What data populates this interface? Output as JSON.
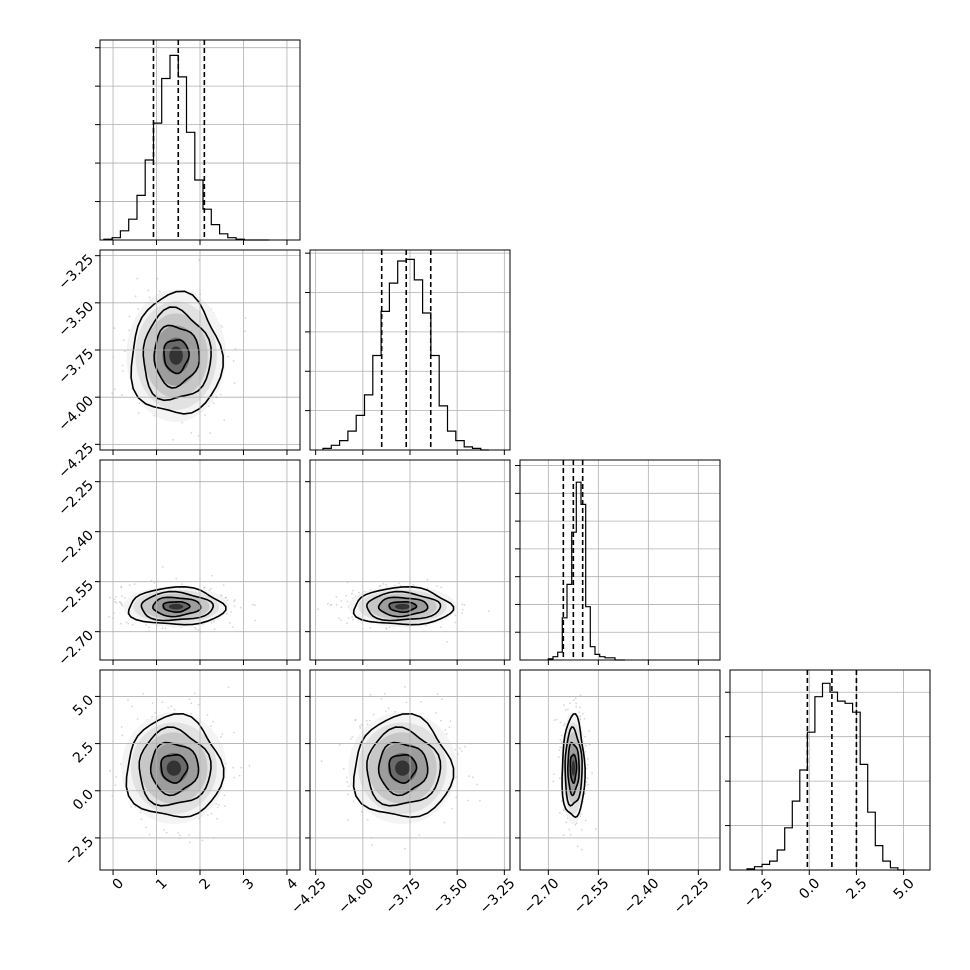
{
  "chart_data": {
    "type": "corner",
    "grid": true,
    "params": [
      {
        "range": [
          -0.3,
          4.3
        ],
        "ticks": [
          0,
          1,
          2,
          3,
          4
        ],
        "tick_labels": [
          "0",
          "1",
          "2",
          "3",
          "4"
        ],
        "quantiles": [
          0.93,
          1.5,
          2.1
        ]
      },
      {
        "range": [
          -4.28,
          -3.22
        ],
        "ticks": [
          -4.25,
          -4.0,
          -3.75,
          -3.5,
          -3.25
        ],
        "tick_labels": [
          "−4.25",
          "−4.00",
          "−3.75",
          "−3.50",
          "−3.25"
        ],
        "quantiles": [
          -3.9,
          -3.77,
          -3.64
        ]
      },
      {
        "range": [
          -2.785,
          -2.185
        ],
        "ticks": [
          -2.7,
          -2.55,
          -2.4,
          -2.25
        ],
        "tick_labels": [
          "−2.70",
          "−2.55",
          "−2.40",
          "−2.25"
        ],
        "y_ticks": [
          -2.7,
          -2.55,
          -2.4,
          -2.25
        ],
        "y_tick_labels": [
          "−2.70",
          "−2.55",
          "−2.40",
          "−2.25"
        ],
        "quantiles": [
          -2.655,
          -2.625,
          -2.597
        ]
      },
      {
        "range": [
          -4.2,
          6.4
        ],
        "ticks": [
          -2.5,
          0.0,
          2.5,
          5.0
        ],
        "tick_labels": [
          "−2.5",
          "0.0",
          "2.5",
          "5.0"
        ],
        "quantiles": [
          -0.1,
          1.2,
          2.5
        ]
      }
    ],
    "marginals": [
      {
        "bins": [
          -0.21,
          -0.02,
          0.17,
          0.36,
          0.55,
          0.74,
          0.93,
          1.12,
          1.31,
          1.5,
          1.69,
          1.88,
          2.07,
          2.26,
          2.45,
          2.64,
          2.83,
          3.02,
          3.21,
          3.4,
          3.59
        ],
        "counts": [
          1,
          3,
          12,
          27,
          58,
          104,
          152,
          210,
          240,
          212,
          140,
          78,
          40,
          20,
          8,
          3,
          1,
          0,
          0,
          0
        ],
        "ymax": 260,
        "y_ticks": [
          50,
          100,
          150,
          200,
          250
        ]
      },
      {
        "bins": [
          -4.211,
          -4.167,
          -4.123,
          -4.079,
          -4.035,
          -3.991,
          -3.947,
          -3.903,
          -3.859,
          -3.815,
          -3.771,
          -3.727,
          -3.683,
          -3.639,
          -3.595,
          -3.551,
          -3.507,
          -3.463,
          -3.419,
          -3.375,
          -3.331
        ],
        "counts": [
          1,
          3,
          6,
          12,
          22,
          35,
          60,
          88,
          106,
          120,
          121,
          108,
          87,
          60,
          28,
          12,
          6,
          2,
          1,
          0
        ],
        "ymax": 127,
        "y_ticks": [
          25,
          50,
          75,
          100,
          125
        ]
      },
      {
        "bins": [
          -2.7,
          -2.686,
          -2.672,
          -2.658,
          -2.644,
          -2.63,
          -2.616,
          -2.602,
          -2.588,
          -2.574,
          -2.56,
          -2.546,
          -2.53,
          -2.5,
          -2.47
        ],
        "counts": [
          1,
          3,
          7,
          38,
          68,
          115,
          160,
          140,
          48,
          12,
          5,
          3,
          2,
          0
        ],
        "ymax": 180,
        "y_ticks": [
          25,
          50,
          75,
          100,
          125,
          150,
          175
        ]
      },
      {
        "bins": [
          -3.3,
          -2.9,
          -2.5,
          -2.1,
          -1.7,
          -1.3,
          -0.9,
          -0.5,
          -0.1,
          0.3,
          0.7,
          1.1,
          1.5,
          1.9,
          2.3,
          2.7,
          3.1,
          3.5,
          3.9,
          4.3,
          4.7,
          5.1
        ],
        "counts": [
          1,
          3,
          5,
          8,
          18,
          38,
          62,
          90,
          124,
          156,
          168,
          160,
          152,
          150,
          142,
          95,
          52,
          22,
          8,
          2,
          0
        ],
        "ymax": 180,
        "y_ticks": [
          40,
          80,
          120,
          160
        ]
      }
    ],
    "joint": [
      {
        "x": 0,
        "y": 1,
        "mean": [
          1.45,
          -3.78
        ],
        "sd": [
          0.52,
          0.16
        ]
      },
      {
        "x": 0,
        "y": 2,
        "mean": [
          1.45,
          -2.625
        ],
        "sd": [
          0.55,
          0.028
        ]
      },
      {
        "x": 1,
        "y": 2,
        "mean": [
          -3.79,
          -2.625
        ],
        "sd": [
          0.13,
          0.028
        ]
      },
      {
        "x": 0,
        "y": 3,
        "mean": [
          1.4,
          1.2
        ],
        "sd": [
          0.55,
          1.35
        ]
      },
      {
        "x": 1,
        "y": 3,
        "mean": [
          -3.79,
          1.2
        ],
        "sd": [
          0.13,
          1.35
        ]
      },
      {
        "x": 2,
        "y": 3,
        "mean": [
          -2.625,
          1.2
        ],
        "sd": [
          0.017,
          1.35
        ]
      }
    ]
  }
}
